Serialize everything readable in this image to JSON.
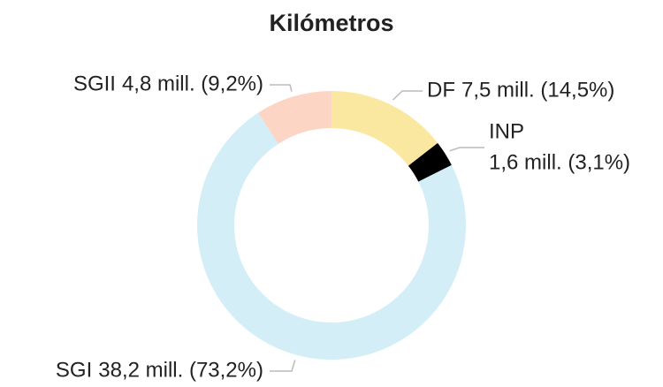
{
  "chart_data": {
    "type": "donut",
    "title": "Kilómetros",
    "categories": [
      "DF",
      "INP",
      "SGI",
      "SGII"
    ],
    "values": [
      14.5,
      3.1,
      73.2,
      9.2
    ],
    "value_labels": [
      "7,5 mill. (14,5%)",
      "1,6 mill. (3,1%)",
      "38,2 mill. (73,2%)",
      "4,8 mill. (9,2%)"
    ],
    "colors": [
      "#fae8a0",
      "#000000",
      "#d3eef7",
      "#fdd5c4"
    ]
  }
}
